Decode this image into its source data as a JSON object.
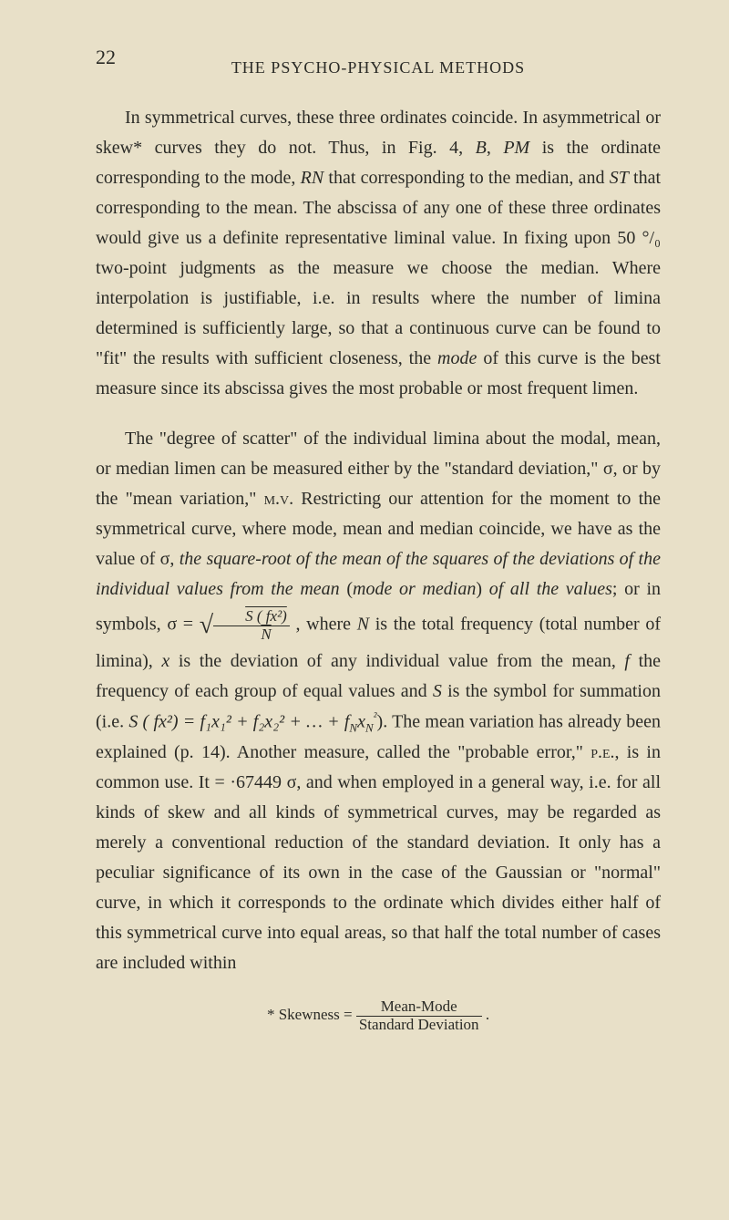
{
  "page_number": "22",
  "header": "THE PSYCHO-PHYSICAL METHODS",
  "para1_part1": "In symmetrical curves, these three ordinates coincide. In asymmetrical or skew* curves they do not. Thus, in Fig. 4, ",
  "para1_B": "B",
  "para1_part2": ", ",
  "para1_PM": "PM",
  "para1_part3": " is the ordinate corresponding to the mode, ",
  "para1_RN": "RN",
  "para1_part4": " that corresponding to the median, and ",
  "para1_ST": "ST",
  "para1_part5": " that corresponding to the mean. The abscissa of any one of these three ordinates would give us a definite representative liminal value. In fixing upon 50 °/₀ two-point judgments as the measure we choose the median. Where interpolation is justifiable, i.e. in results where the number of limina determined is sufficiently large, so that a continuous curve can be found to \"fit\" the results with sufficient closeness, the ",
  "para1_mode": "mode",
  "para1_part6": " of this curve is the best measure since its abscissa gives the most probable or most frequent limen.",
  "para2_part1": "The \"degree of scatter\" of the individual limina about the modal, mean, or median limen can be measured either by the \"standard deviation,\" σ, or by the \"mean variation,\" ",
  "para2_mv": "m.v.",
  "para2_part2": " Restricting our attention for the moment to the symmetrical curve, where mode, mean and median coincide, we have as the value of σ, ",
  "para2_italic1": "the square-root of the mean of the squares of the deviations of the individual values from the mean",
  "para2_part3": " (",
  "para2_italic2": "mode or median",
  "para2_part4": ") ",
  "para2_italic3": "of all the values",
  "para2_part5": "; or in symbols, σ = ",
  "frac_num": "S ( fx²)",
  "frac_den": "N",
  "para2_part6": " , where ",
  "para2_N": "N",
  "para2_part7": " is the total frequency (total number of limina), ",
  "para2_x": "x",
  "para2_part8": " is the deviation of any individual value from the mean, ",
  "para2_f": "f",
  "para2_part9": " the frequency of each group of equal values and ",
  "para2_S": "S",
  "para2_part10": " is the symbol for summation (i.e. ",
  "para2_formula": "S ( fx²) = f₁x₁² + f₂x₂² + … + f",
  "para2_formula_N": "N",
  "para2_formula_x": "x",
  "para2_formula_N2": "N",
  "para2_formula_end": "²",
  "para2_part11": "). The mean variation has already been explained (p. 14). Another measure, called the \"probable error,\" ",
  "para2_pe": "p.e.",
  "para2_part12": ", is in common use. It = ·67449 σ, and when employed in a general way, i.e. for all kinds of skew and all kinds of symmetrical curves, may be regarded as merely a conventional reduction of the standard deviation. It only has a peculiar significance of its own in the case of the Gaussian or \"normal\" curve, in which it corresponds to the ordinate which divides either half of this symmetrical curve into equal areas, so that half the total number of cases are included within",
  "footnote_label": "* Skewness = ",
  "footnote_num": "Mean-Mode",
  "footnote_den": "Standard Deviation",
  "footnote_end": " ."
}
